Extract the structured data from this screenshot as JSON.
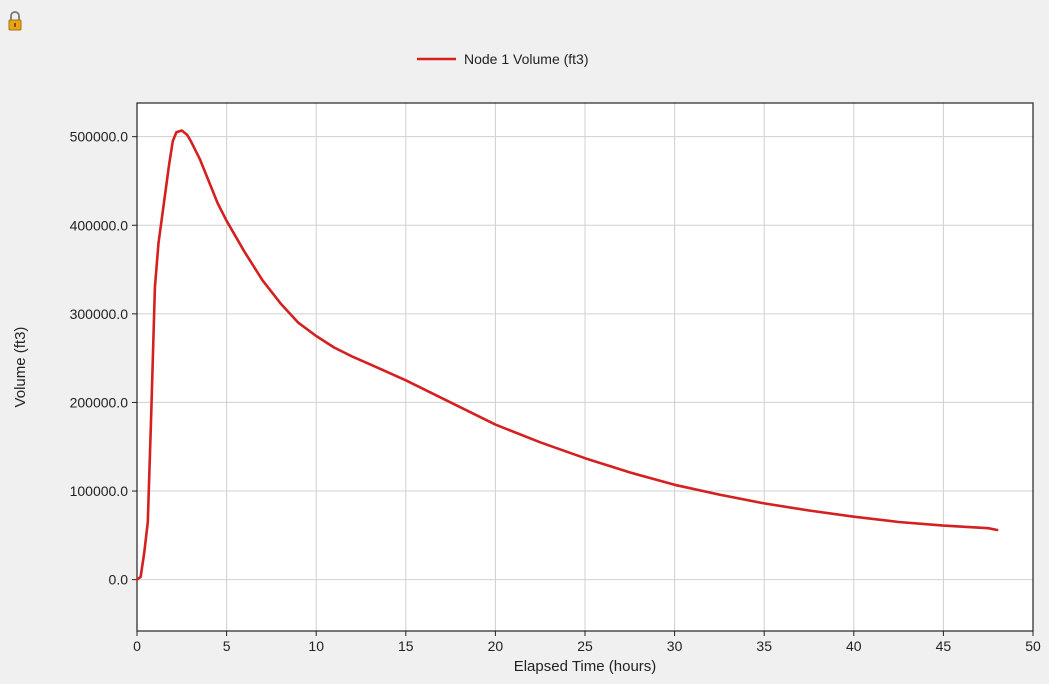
{
  "window": {
    "lock_icon": "padlock-icon"
  },
  "chart_data": {
    "type": "line",
    "xlabel": "Elapsed Time (hours)",
    "ylabel": "Volume (ft3)",
    "xlim": [
      0,
      50
    ],
    "ylim": [
      -58000,
      538000
    ],
    "x_ticks": [
      0,
      5,
      10,
      15,
      20,
      25,
      30,
      35,
      40,
      45,
      50
    ],
    "y_ticks": [
      0,
      100000,
      200000,
      300000,
      400000,
      500000
    ],
    "y_tick_labels": [
      "0.0",
      "100000.0",
      "200000.0",
      "300000.0",
      "400000.0",
      "500000.0"
    ],
    "grid": true,
    "legend": "top-center",
    "series": [
      {
        "name": "Node 1 Volume (ft3)",
        "color": "#d42020",
        "x": [
          0,
          0.2,
          0.4,
          0.6,
          0.8,
          1.0,
          1.2,
          1.4,
          1.6,
          1.8,
          2.0,
          2.2,
          2.5,
          2.8,
          3.0,
          3.5,
          4.0,
          4.5,
          5.0,
          6.0,
          7.0,
          8.0,
          9.0,
          10.0,
          11.0,
          12.0,
          13.0,
          14.0,
          15.0,
          17.5,
          20.0,
          22.5,
          25.0,
          27.5,
          30.0,
          32.5,
          35.0,
          37.5,
          40.0,
          42.5,
          45.0,
          47.5,
          48.0
        ],
        "y": [
          0,
          3000,
          30000,
          65000,
          190000,
          330000,
          380000,
          410000,
          440000,
          470000,
          495000,
          505000,
          507000,
          502000,
          495000,
          475000,
          450000,
          425000,
          405000,
          370000,
          338000,
          312000,
          290000,
          275000,
          262000,
          252000,
          243000,
          234000,
          225000,
          200000,
          175000,
          155000,
          137000,
          121000,
          107000,
          96000,
          86000,
          78000,
          71000,
          65000,
          61000,
          58000,
          56000
        ]
      }
    ]
  }
}
